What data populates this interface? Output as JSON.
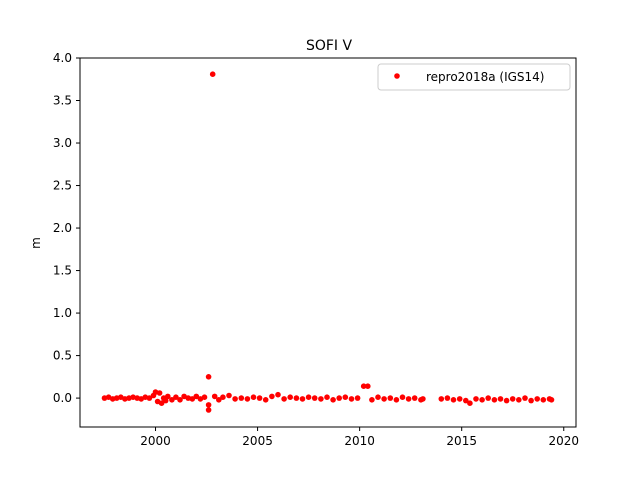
{
  "chart_data": {
    "type": "scatter",
    "title": "SOFI V",
    "xlabel": "",
    "ylabel": "m",
    "xlim": [
      1996.3,
      2020.6
    ],
    "ylim": [
      -0.34,
      4.0
    ],
    "xticks": [
      {
        "value": 2000,
        "label": "2000"
      },
      {
        "value": 2005,
        "label": "2005"
      },
      {
        "value": 2010,
        "label": "2010"
      },
      {
        "value": 2015,
        "label": "2015"
      },
      {
        "value": 2020,
        "label": "2020"
      }
    ],
    "yticks": [
      {
        "value": 0.0,
        "label": "0.0"
      },
      {
        "value": 0.5,
        "label": "0.5"
      },
      {
        "value": 1.0,
        "label": "1.0"
      },
      {
        "value": 1.5,
        "label": "1.5"
      },
      {
        "value": 2.0,
        "label": "2.0"
      },
      {
        "value": 2.5,
        "label": "2.5"
      },
      {
        "value": 3.0,
        "label": "3.0"
      },
      {
        "value": 3.5,
        "label": "3.5"
      },
      {
        "value": 4.0,
        "label": "4.0"
      }
    ],
    "legend": {
      "position": "top-right"
    },
    "grid": false,
    "series": [
      {
        "name": "repro2018a (IGS14)",
        "color": "#ff0000",
        "points": [
          {
            "x": 1997.5,
            "y": 0.0
          },
          {
            "x": 1997.7,
            "y": 0.01
          },
          {
            "x": 1997.9,
            "y": -0.01
          },
          {
            "x": 1998.1,
            "y": 0.0
          },
          {
            "x": 1998.3,
            "y": 0.01
          },
          {
            "x": 1998.5,
            "y": -0.01
          },
          {
            "x": 1998.7,
            "y": 0.0
          },
          {
            "x": 1998.9,
            "y": 0.01
          },
          {
            "x": 1999.1,
            "y": 0.0
          },
          {
            "x": 1999.3,
            "y": -0.01
          },
          {
            "x": 1999.5,
            "y": 0.01
          },
          {
            "x": 1999.7,
            "y": 0.0
          },
          {
            "x": 1999.9,
            "y": 0.03
          },
          {
            "x": 2000.0,
            "y": 0.07
          },
          {
            "x": 2000.1,
            "y": -0.04
          },
          {
            "x": 2000.2,
            "y": 0.06
          },
          {
            "x": 2000.3,
            "y": -0.06
          },
          {
            "x": 2000.4,
            "y": 0.0
          },
          {
            "x": 2000.5,
            "y": -0.03
          },
          {
            "x": 2000.6,
            "y": 0.02
          },
          {
            "x": 2000.8,
            "y": -0.02
          },
          {
            "x": 2001.0,
            "y": 0.01
          },
          {
            "x": 2001.2,
            "y": -0.02
          },
          {
            "x": 2001.4,
            "y": 0.02
          },
          {
            "x": 2001.6,
            "y": 0.0
          },
          {
            "x": 2001.8,
            "y": -0.01
          },
          {
            "x": 2002.0,
            "y": 0.02
          },
          {
            "x": 2002.2,
            "y": -0.01
          },
          {
            "x": 2002.4,
            "y": 0.01
          },
          {
            "x": 2002.6,
            "y": 0.25
          },
          {
            "x": 2002.6,
            "y": -0.08
          },
          {
            "x": 2002.6,
            "y": -0.14
          },
          {
            "x": 2002.8,
            "y": 3.81
          },
          {
            "x": 2002.9,
            "y": 0.02
          },
          {
            "x": 2003.1,
            "y": -0.02
          },
          {
            "x": 2003.3,
            "y": 0.01
          },
          {
            "x": 2003.6,
            "y": 0.03
          },
          {
            "x": 2003.9,
            "y": -0.01
          },
          {
            "x": 2004.2,
            "y": 0.0
          },
          {
            "x": 2004.5,
            "y": -0.01
          },
          {
            "x": 2004.8,
            "y": 0.01
          },
          {
            "x": 2005.1,
            "y": 0.0
          },
          {
            "x": 2005.4,
            "y": -0.02
          },
          {
            "x": 2005.7,
            "y": 0.02
          },
          {
            "x": 2006.0,
            "y": 0.04
          },
          {
            "x": 2006.3,
            "y": -0.01
          },
          {
            "x": 2006.6,
            "y": 0.01
          },
          {
            "x": 2006.9,
            "y": 0.0
          },
          {
            "x": 2007.2,
            "y": -0.01
          },
          {
            "x": 2007.5,
            "y": 0.01
          },
          {
            "x": 2007.8,
            "y": 0.0
          },
          {
            "x": 2008.1,
            "y": -0.01
          },
          {
            "x": 2008.4,
            "y": 0.01
          },
          {
            "x": 2008.7,
            "y": -0.02
          },
          {
            "x": 2009.0,
            "y": 0.0
          },
          {
            "x": 2009.3,
            "y": 0.01
          },
          {
            "x": 2009.6,
            "y": -0.01
          },
          {
            "x": 2009.9,
            "y": 0.0
          },
          {
            "x": 2010.2,
            "y": 0.14
          },
          {
            "x": 2010.4,
            "y": 0.14
          },
          {
            "x": 2010.6,
            "y": -0.02
          },
          {
            "x": 2010.9,
            "y": 0.01
          },
          {
            "x": 2011.2,
            "y": -0.01
          },
          {
            "x": 2011.5,
            "y": 0.0
          },
          {
            "x": 2011.8,
            "y": -0.02
          },
          {
            "x": 2012.1,
            "y": 0.01
          },
          {
            "x": 2012.4,
            "y": -0.01
          },
          {
            "x": 2012.7,
            "y": 0.0
          },
          {
            "x": 2013.0,
            "y": -0.02
          },
          {
            "x": 2013.1,
            "y": -0.01
          },
          {
            "x": 2014.0,
            "y": -0.01
          },
          {
            "x": 2014.3,
            "y": 0.0
          },
          {
            "x": 2014.6,
            "y": -0.02
          },
          {
            "x": 2014.9,
            "y": -0.01
          },
          {
            "x": 2015.2,
            "y": -0.03
          },
          {
            "x": 2015.4,
            "y": -0.06
          },
          {
            "x": 2015.7,
            "y": -0.01
          },
          {
            "x": 2016.0,
            "y": -0.02
          },
          {
            "x": 2016.3,
            "y": 0.0
          },
          {
            "x": 2016.6,
            "y": -0.02
          },
          {
            "x": 2016.9,
            "y": -0.01
          },
          {
            "x": 2017.2,
            "y": -0.03
          },
          {
            "x": 2017.5,
            "y": -0.01
          },
          {
            "x": 2017.8,
            "y": -0.02
          },
          {
            "x": 2018.1,
            "y": 0.0
          },
          {
            "x": 2018.4,
            "y": -0.03
          },
          {
            "x": 2018.7,
            "y": -0.01
          },
          {
            "x": 2019.0,
            "y": -0.02
          },
          {
            "x": 2019.3,
            "y": -0.01
          },
          {
            "x": 2019.4,
            "y": -0.02
          }
        ]
      }
    ]
  }
}
